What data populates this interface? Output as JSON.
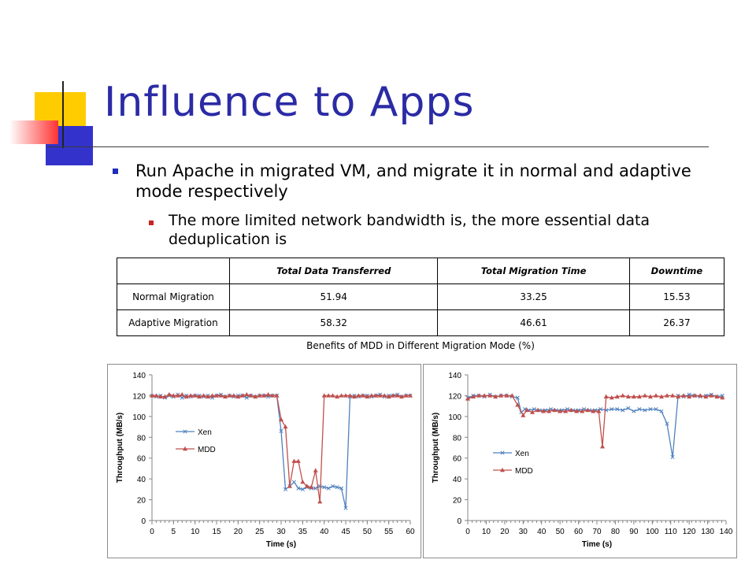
{
  "slide": {
    "title": "Influence to Apps",
    "bullets": [
      "Run Apache in migrated VM, and migrate it in normal and adaptive mode respectively",
      "The more limited network bandwidth is, the more essential data deduplication is"
    ],
    "caption": "Benefits of MDD in Different Migration Mode (%)"
  },
  "table": {
    "headers": [
      "",
      "Total Data Transferred",
      "Total Migration Time",
      "Downtime"
    ],
    "rows": [
      [
        "Normal Migration",
        "51.94",
        "33.25",
        "15.53"
      ],
      [
        "Adaptive Migration",
        "58.32",
        "46.61",
        "26.37"
      ]
    ]
  },
  "colors": {
    "title": "#2b2ba6",
    "xen": "#4f81bd",
    "mdd": "#c0504d",
    "deco_yellow": "#ffcc00",
    "deco_blue": "#3333cc",
    "deco_red": "#ff3333"
  },
  "chart_data": [
    {
      "type": "line",
      "xlabel": "Time (s)",
      "ylabel": "Throughput (MB/s)",
      "xlim": [
        0,
        60
      ],
      "ylim": [
        0,
        140
      ],
      "xticks": [
        0,
        5,
        10,
        15,
        20,
        25,
        30,
        35,
        40,
        45,
        50,
        55,
        60
      ],
      "yticks": [
        0,
        20,
        40,
        60,
        80,
        100,
        120,
        140
      ],
      "grid": false,
      "legend": "left-middle",
      "series": [
        {
          "name": "Xen",
          "color": "#4f81bd",
          "marker": "x",
          "x": [
            0,
            1,
            2,
            3,
            4,
            5,
            6,
            7,
            8,
            9,
            10,
            11,
            12,
            13,
            14,
            15,
            16,
            17,
            18,
            19,
            20,
            21,
            22,
            23,
            24,
            25,
            26,
            27,
            28,
            29,
            30,
            31,
            32,
            33,
            34,
            35,
            36,
            37,
            38,
            39,
            40,
            41,
            42,
            43,
            44,
            45,
            46,
            47,
            48,
            49,
            50,
            51,
            52,
            53,
            54,
            55,
            56,
            57,
            58,
            59,
            60
          ],
          "values": [
            120,
            119,
            120,
            118,
            120,
            119,
            121,
            118,
            120,
            119,
            120,
            120,
            119,
            120,
            118,
            120,
            121,
            119,
            120,
            119,
            120,
            120,
            118,
            120,
            119,
            120,
            120,
            119,
            120,
            120,
            86,
            30,
            33,
            37,
            31,
            30,
            32,
            31,
            31,
            33,
            32,
            31,
            33,
            32,
            31,
            12,
            119,
            120,
            119,
            120,
            120,
            119,
            120,
            121,
            119,
            120,
            120,
            121,
            119,
            120,
            120
          ]
        },
        {
          "name": "MDD",
          "color": "#c0504d",
          "marker": "triangle",
          "x": [
            0,
            1,
            2,
            3,
            4,
            5,
            6,
            7,
            8,
            9,
            10,
            11,
            12,
            13,
            14,
            15,
            16,
            17,
            18,
            19,
            20,
            21,
            22,
            23,
            24,
            25,
            26,
            27,
            28,
            29,
            30,
            31,
            32,
            33,
            34,
            35,
            36,
            37,
            38,
            39,
            40,
            41,
            42,
            43,
            44,
            45,
            46,
            47,
            48,
            49,
            50,
            51,
            52,
            53,
            54,
            55,
            56,
            57,
            58,
            59,
            60
          ],
          "values": [
            120,
            120,
            119,
            119,
            121,
            120,
            120,
            121,
            119,
            120,
            120,
            119,
            120,
            119,
            120,
            120,
            120,
            119,
            120,
            120,
            119,
            120,
            121,
            120,
            119,
            120,
            120,
            121,
            120,
            120,
            97,
            90,
            33,
            57,
            57,
            37,
            33,
            32,
            48,
            18,
            120,
            120,
            120,
            119,
            120,
            120,
            120,
            119,
            120,
            120,
            119,
            120,
            120,
            120,
            120,
            119,
            120,
            120,
            119,
            120,
            120
          ]
        }
      ]
    },
    {
      "type": "line",
      "xlabel": "Time (s)",
      "ylabel": "Throughput (MB/s)",
      "xlim": [
        0,
        140
      ],
      "ylim": [
        0,
        140
      ],
      "xticks": [
        0,
        10,
        20,
        30,
        40,
        50,
        60,
        70,
        80,
        90,
        100,
        110,
        120,
        130,
        140
      ],
      "yticks": [
        0,
        20,
        40,
        60,
        80,
        100,
        120,
        140
      ],
      "grid": false,
      "legend": "left-middle",
      "series": [
        {
          "name": "Xen",
          "color": "#4f81bd",
          "marker": "x",
          "x": [
            0,
            3,
            6,
            9,
            12,
            15,
            18,
            21,
            24,
            27,
            29,
            31,
            33,
            36,
            39,
            42,
            45,
            48,
            51,
            54,
            57,
            60,
            63,
            66,
            69,
            72,
            75,
            78,
            81,
            84,
            87,
            90,
            93,
            96,
            99,
            102,
            105,
            108,
            111,
            114,
            117,
            120,
            123,
            126,
            129,
            132,
            135,
            138
          ],
          "values": [
            118,
            120,
            120,
            119,
            121,
            119,
            120,
            120,
            119,
            118,
            104,
            107,
            106,
            107,
            106,
            106,
            107,
            106,
            106,
            107,
            106,
            106,
            107,
            106,
            106,
            107,
            106,
            107,
            107,
            106,
            108,
            105,
            107,
            106,
            107,
            107,
            105,
            93,
            61,
            120,
            119,
            121,
            120,
            119,
            120,
            121,
            119,
            120
          ]
        },
        {
          "name": "MDD",
          "color": "#c0504d",
          "marker": "triangle",
          "x": [
            0,
            3,
            6,
            9,
            12,
            15,
            18,
            21,
            24,
            27,
            30,
            32,
            35,
            38,
            41,
            44,
            47,
            50,
            53,
            56,
            59,
            62,
            65,
            68,
            71,
            73,
            75,
            78,
            81,
            84,
            87,
            90,
            93,
            96,
            99,
            102,
            105,
            108,
            111,
            114,
            117,
            120,
            123,
            126,
            129,
            132,
            135,
            138
          ],
          "values": [
            117,
            119,
            120,
            120,
            120,
            119,
            120,
            120,
            120,
            111,
            101,
            106,
            104,
            106,
            105,
            105,
            106,
            105,
            105,
            106,
            105,
            105,
            106,
            105,
            105,
            71,
            119,
            118,
            119,
            120,
            119,
            119,
            119,
            120,
            119,
            120,
            119,
            120,
            120,
            119,
            120,
            119,
            120,
            120,
            119,
            120,
            119,
            118
          ]
        }
      ]
    }
  ]
}
